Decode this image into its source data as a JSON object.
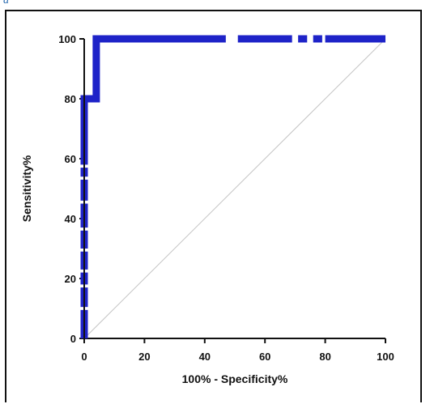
{
  "figure": {
    "panel_label": "a"
  },
  "chart_data": {
    "type": "line",
    "title": "",
    "xlabel": "100% - Specificity%",
    "ylabel": "Sensitivity%",
    "xlim": [
      0,
      100
    ],
    "ylim": [
      0,
      100
    ],
    "x_ticks": [
      0,
      20,
      40,
      60,
      80,
      100
    ],
    "y_ticks": [
      0,
      20,
      40,
      60,
      80,
      100
    ],
    "x_tick_labels": [
      "0",
      "20",
      "40",
      "60",
      "80",
      "100"
    ],
    "y_tick_labels": [
      "0",
      "20",
      "40",
      "60",
      "80",
      "100"
    ],
    "grid": false,
    "legend": "none",
    "series": [
      {
        "role": "roc_curve",
        "color": "#1e23c8",
        "x": [
          0,
          0,
          0,
          0,
          0,
          0,
          0,
          0,
          0,
          4,
          4,
          4,
          4,
          47,
          51,
          100
        ],
        "y": [
          0,
          8,
          16,
          24,
          32,
          40,
          48,
          56,
          80,
          80,
          100,
          100,
          100,
          100,
          100,
          100
        ]
      },
      {
        "role": "reference_diagonal",
        "color": "#c4c4c4",
        "x": [
          0,
          100
        ],
        "y": [
          0,
          100
        ]
      }
    ],
    "roc_x_breaks": [
      [
        47,
        51
      ],
      [
        69,
        71
      ],
      [
        74,
        76
      ],
      [
        79,
        80
      ]
    ],
    "roc_y_breaks": [
      [
        9.5,
        10.5
      ],
      [
        17,
        18
      ],
      [
        22,
        23
      ],
      [
        29,
        30
      ],
      [
        36,
        37
      ],
      [
        45,
        46
      ],
      [
        53,
        54
      ],
      [
        57,
        58
      ]
    ]
  }
}
